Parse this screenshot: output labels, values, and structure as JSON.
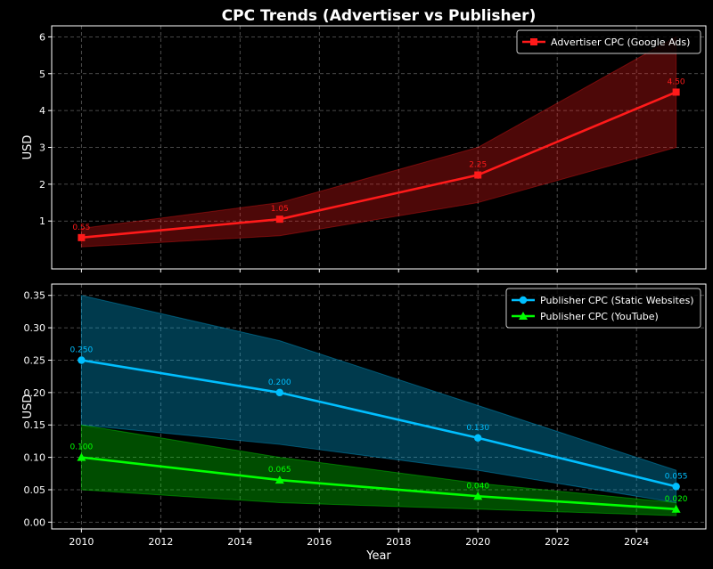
{
  "figure": {
    "title": "CPC Trends (Advertiser vs Publisher)",
    "xlabel": "Year",
    "background": "#000000"
  },
  "chart_data": [
    {
      "type": "line",
      "ylabel": "USD",
      "xlim": [
        2009.25,
        2025.75
      ],
      "ylim": [
        -0.3,
        6.3
      ],
      "x_ticks": [
        2010,
        2012,
        2014,
        2016,
        2018,
        2020,
        2022,
        2024
      ],
      "y_ticks": [
        1,
        2,
        3,
        4,
        5,
        6
      ],
      "y_tick_labels": [
        "1",
        "2",
        "3",
        "4",
        "5",
        "6"
      ],
      "grid": true,
      "legend_position": "top-right",
      "series": [
        {
          "name": "Advertiser CPC (Google Ads)",
          "color": "#ff1a1a",
          "marker": "square",
          "x": [
            2010,
            2015,
            2020,
            2025
          ],
          "values": [
            0.55,
            1.05,
            2.25,
            4.5
          ],
          "band_low": [
            0.3,
            0.6,
            1.5,
            3.0
          ],
          "band_high": [
            0.8,
            1.5,
            3.0,
            6.0
          ],
          "point_labels": [
            "0.55",
            "1.05",
            "2.25",
            "4.50"
          ]
        }
      ]
    },
    {
      "type": "line",
      "ylabel": "USD",
      "xlim": [
        2009.25,
        2025.75
      ],
      "ylim": [
        -0.0105,
        0.3675
      ],
      "x_ticks": [
        2010,
        2012,
        2014,
        2016,
        2018,
        2020,
        2022,
        2024
      ],
      "x_tick_labels": [
        "2010",
        "2012",
        "2014",
        "2016",
        "2018",
        "2020",
        "2022",
        "2024"
      ],
      "y_ticks": [
        0.0,
        0.05,
        0.1,
        0.15,
        0.2,
        0.25,
        0.3,
        0.35
      ],
      "y_tick_labels": [
        "0.00",
        "0.05",
        "0.10",
        "0.15",
        "0.20",
        "0.25",
        "0.30",
        "0.35"
      ],
      "grid": true,
      "legend_position": "top-right",
      "series": [
        {
          "name": "Publisher CPC (Static Websites)",
          "color": "#00bfff",
          "marker": "circle",
          "x": [
            2010,
            2015,
            2020,
            2025
          ],
          "values": [
            0.25,
            0.2,
            0.13,
            0.055
          ],
          "band_low": [
            0.15,
            0.12,
            0.08,
            0.03
          ],
          "band_high": [
            0.35,
            0.28,
            0.18,
            0.08
          ],
          "point_labels": [
            "0.250",
            "0.200",
            "0.130",
            "0.055"
          ]
        },
        {
          "name": "Publisher CPC (YouTube)",
          "color": "#00ff00",
          "marker": "triangle",
          "x": [
            2010,
            2015,
            2020,
            2025
          ],
          "values": [
            0.1,
            0.065,
            0.04,
            0.02
          ],
          "band_low": [
            0.05,
            0.03,
            0.02,
            0.01
          ],
          "band_high": [
            0.15,
            0.1,
            0.06,
            0.03
          ],
          "point_labels": [
            "0.100",
            "0.065",
            "0.040",
            "0.020"
          ]
        }
      ]
    }
  ]
}
